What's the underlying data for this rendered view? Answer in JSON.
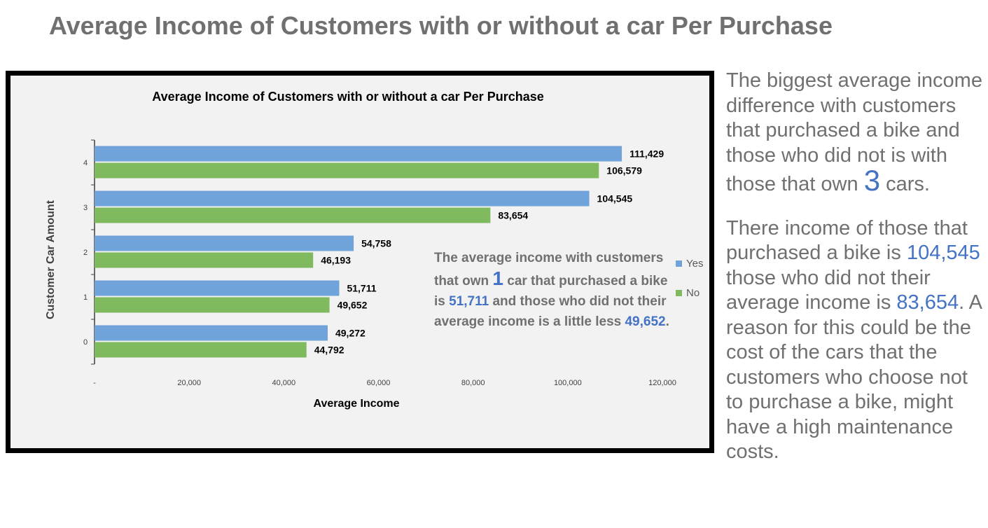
{
  "page": {
    "title": "Average Income of Customers with or without a car Per Purchase"
  },
  "colors": {
    "yes": "#6fa3d9",
    "no": "#7fba5e",
    "highlight": "#4472c4"
  },
  "chart_data": {
    "type": "bar",
    "orientation": "horizontal",
    "title": "Average Income of Customers with or without a car Per Purchase",
    "xlabel": "Average Income",
    "ylabel": "Customer Car Amount",
    "categories": [
      "0",
      "1",
      "2",
      "3",
      "4"
    ],
    "series": [
      {
        "name": "Yes",
        "values": [
          49272,
          51711,
          54758,
          104545,
          111429
        ]
      },
      {
        "name": "No",
        "values": [
          44792,
          49652,
          46193,
          83654,
          106579
        ]
      }
    ],
    "xlim": [
      0,
      120000
    ],
    "x_ticks": [
      "-",
      "20,000",
      "40,000",
      "60,000",
      "80,000",
      "100,000",
      "120,000"
    ],
    "grid": false,
    "legend": "right"
  },
  "annotation": {
    "part1": "The average income with customers that own ",
    "num_cars": "1",
    "part2": " car that purchased a bike is ",
    "yes_value": "51,711",
    "part3": " and those who did not their average income is a little less ",
    "no_value": "49,652",
    "part4": "."
  },
  "side_text": {
    "p1_part1": "The biggest average income difference with customers that purchased a bike and those who did not is with those that own ",
    "p1_number": "3",
    "p1_part2": " cars.",
    "p2_part1": "There income of those that purchased a bike is ",
    "p2_yes": "104,545",
    "p2_part2": " those who did not their average income is ",
    "p2_no": "83,654",
    "p2_part3": ".  A reason for this could be the cost of the cars that the customers who choose not to purchase a bike, might have a high maintenance costs."
  }
}
